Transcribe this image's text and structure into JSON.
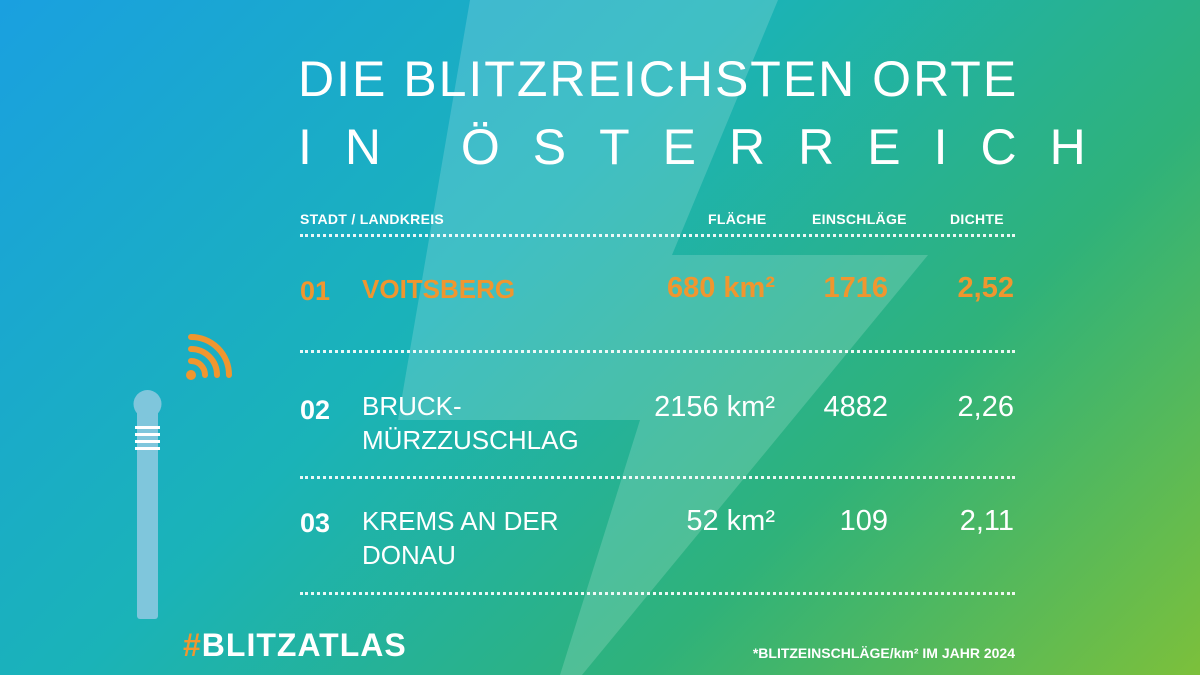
{
  "title": {
    "line1": "DIE BLITZREICHSTEN ORTE",
    "line2": "IN ÖSTERREICH"
  },
  "table": {
    "headers": {
      "city": "STADT / LANDKREIS",
      "area": "FLÄCHE",
      "strikes": "EINSCHLÄGE",
      "density": "DICHTE"
    },
    "rows": [
      {
        "rank": "01",
        "city_line1": "VOITSBERG",
        "city_line2": "",
        "area": "680 km²",
        "strikes": "1716",
        "density": "2,52"
      },
      {
        "rank": "02",
        "city_line1": "BRUCK-",
        "city_line2": "MÜRZZUSCHLAG",
        "area": "2156 km²",
        "strikes": "4882",
        "density": "2,26"
      },
      {
        "rank": "03",
        "city_line1": "KREMS AN DER",
        "city_line2": "DONAU",
        "area": "52 km²",
        "strikes": "109",
        "density": "2,11"
      }
    ]
  },
  "hashtag": {
    "hash": "#",
    "text": "BLITZATLAS"
  },
  "footnote": "*BLITZEINSCHLÄGE/km² IM JAHR 2024",
  "colors": {
    "accent": "#f0962f",
    "gradient_start": "#1aa0e0",
    "gradient_end": "#7cc03b",
    "sensor": "#7fc6dc"
  },
  "icons": {
    "background": "lightning-bolt-icon",
    "sensor": "lightning-sensor-icon",
    "signal": "wireless-signal-icon"
  }
}
